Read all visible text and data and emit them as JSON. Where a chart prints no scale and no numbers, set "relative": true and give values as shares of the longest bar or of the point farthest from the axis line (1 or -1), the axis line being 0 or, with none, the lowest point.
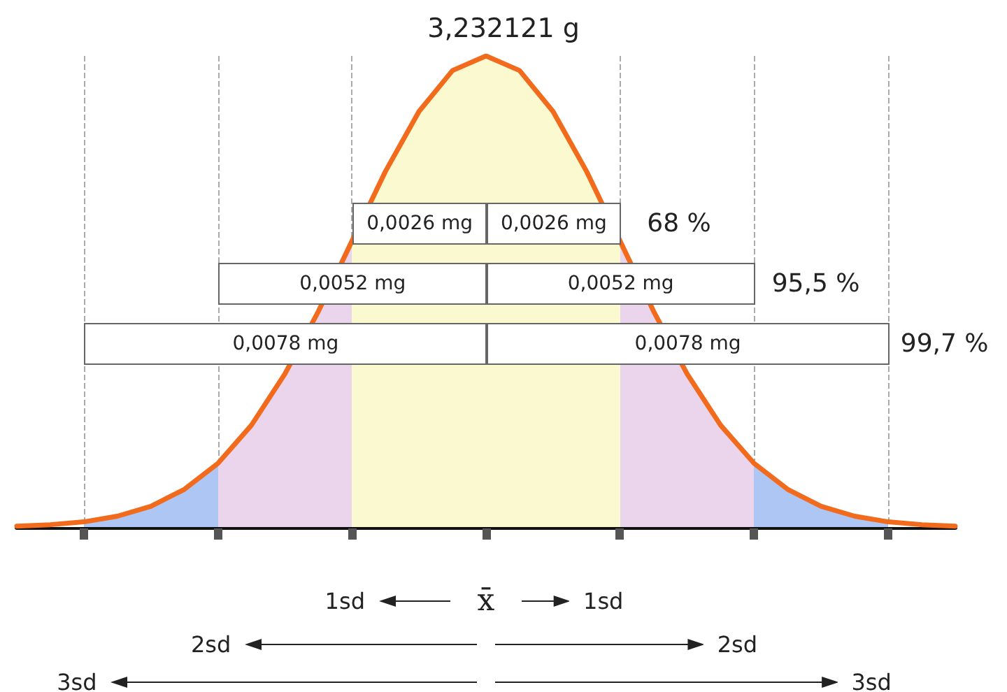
{
  "chart_data": {
    "type": "area",
    "title": "3,232121 g",
    "relative": true,
    "marker": "none",
    "color": "#f26b1d",
    "grid": "x",
    "line_style": "solid",
    "categories": [
      null,
      null,
      null,
      null,
      null,
      null,
      null,
      null,
      null,
      null,
      null,
      null,
      null,
      null,
      null,
      null,
      null,
      null,
      null,
      null,
      null,
      null,
      null,
      null,
      null,
      null,
      null,
      null,
      null
    ],
    "values": [
      0.002,
      0.005,
      0.011,
      0.023,
      0.044,
      0.08,
      0.135,
      0.216,
      0.325,
      0.458,
      0.607,
      0.755,
      0.882,
      0.969,
      1,
      0.969,
      0.882,
      0.755,
      0.607,
      0.458,
      0.325,
      0.216,
      0.135,
      0.08,
      0.044,
      0.023,
      0.011,
      0.005,
      0.002
    ],
    "colors": [
      "#ffffff",
      "#ffffff",
      "#aec6f4",
      "#aec6f4",
      "#aec6f4",
      "#aec6f4",
      "#ead5ec",
      "#ead5ec",
      "#ead5ec",
      "#ead5ec",
      "#fbf9cf",
      "#fbf9cf",
      "#fbf9cf",
      "#fbf9cf",
      "#fbf9cf",
      "#fbf9cf",
      "#fbf9cf",
      "#fbf9cf",
      "#ead5ec",
      "#ead5ec",
      "#ead5ec",
      "#ead5ec",
      "#aec6f4",
      "#aec6f4",
      "#aec6f4",
      "#aec6f4",
      "#ffffff",
      "#ffffff",
      "#ffffff"
    ],
    "annotations": [
      "0,0026 mg",
      "0,0026 mg",
      "0,0052 mg",
      "0,0052 mg",
      "0,0078 mg",
      "0,0078 mg",
      "68 %",
      "95,5 %",
      "99,7 %",
      "1sd",
      "x̄",
      "1sd",
      "2sd",
      "2sd",
      "3sd",
      "3sd"
    ]
  }
}
